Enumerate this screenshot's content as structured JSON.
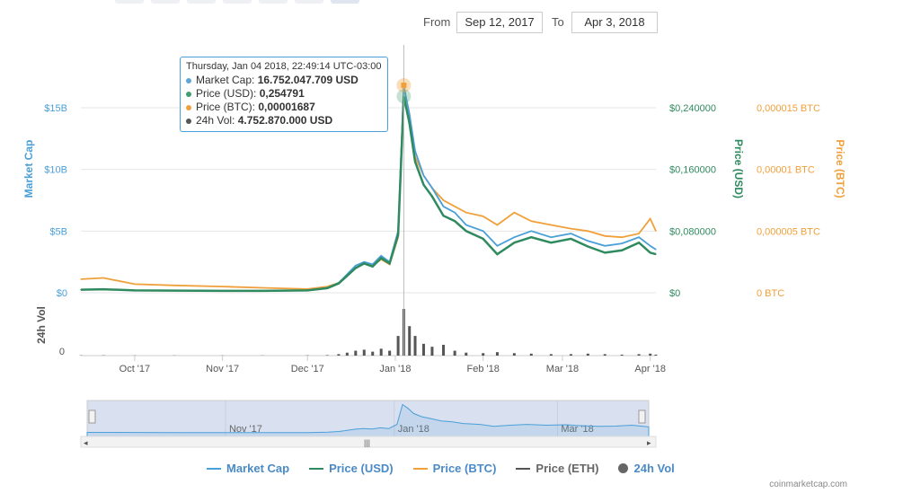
{
  "range": {
    "from_label": "From",
    "from_value": "Sep 12, 2017",
    "to_label": "To",
    "to_value": "Apr 3, 2018"
  },
  "tooltip": {
    "title": "Thursday, Jan 04 2018, 22:49:14 UTC-03:00",
    "rows": [
      {
        "label": "Market Cap:",
        "value": "16.752.047.709 USD",
        "color": "#5da7d8"
      },
      {
        "label": "Price (USD):",
        "value": "0,254791",
        "color": "#3f9f6f"
      },
      {
        "label": "Price (BTC):",
        "value": "0,00001687",
        "color": "#f0a03a"
      },
      {
        "label": "24h Vol:",
        "value": "4.752.870.000 USD",
        "color": "#555555"
      }
    ]
  },
  "legend": [
    {
      "label": "Market Cap",
      "color": "#4a9fd8",
      "kind": "line"
    },
    {
      "label": "Price (USD)",
      "color": "#2f8a5f",
      "kind": "line"
    },
    {
      "label": "Price (BTC)",
      "color": "#f0a03a",
      "kind": "line"
    },
    {
      "label": "Price (ETH)",
      "color": "#555555",
      "kind": "line"
    },
    {
      "label": "24h Vol",
      "color": "#666666",
      "kind": "dot"
    }
  ],
  "credit": "coinmarketcap.com",
  "chart_data": {
    "type": "line",
    "x": [
      "2017-09-12",
      "2017-09-20",
      "2017-10-01",
      "2017-10-15",
      "2017-11-01",
      "2017-11-15",
      "2017-12-01",
      "2017-12-08",
      "2017-12-12",
      "2017-12-15",
      "2017-12-18",
      "2017-12-21",
      "2017-12-24",
      "2017-12-27",
      "2017-12-30",
      "2018-01-02",
      "2018-01-04",
      "2018-01-06",
      "2018-01-08",
      "2018-01-11",
      "2018-01-14",
      "2018-01-18",
      "2018-01-22",
      "2018-01-26",
      "2018-02-01",
      "2018-02-06",
      "2018-02-12",
      "2018-02-18",
      "2018-02-25",
      "2018-03-04",
      "2018-03-10",
      "2018-03-16",
      "2018-03-22",
      "2018-03-28",
      "2018-04-01",
      "2018-04-03"
    ],
    "series": [
      {
        "name": "Market Cap",
        "axis": "Market Cap",
        "values": [
          0.25,
          0.28,
          0.2,
          0.18,
          0.15,
          0.15,
          0.18,
          0.4,
          0.8,
          1.5,
          2.2,
          2.5,
          2.3,
          3.0,
          2.5,
          5.0,
          16.75,
          14.5,
          11.5,
          9.5,
          8.5,
          7.0,
          6.5,
          5.5,
          5.0,
          3.8,
          4.5,
          5.0,
          4.5,
          4.8,
          4.2,
          3.8,
          4.0,
          4.5,
          3.8,
          3.5
        ]
      },
      {
        "name": "Price (USD)",
        "axis": "Price (USD)",
        "values": [
          0.004,
          0.0045,
          0.003,
          0.0028,
          0.0025,
          0.0025,
          0.003,
          0.006,
          0.012,
          0.022,
          0.032,
          0.038,
          0.034,
          0.045,
          0.038,
          0.075,
          0.254791,
          0.22,
          0.17,
          0.14,
          0.125,
          0.1,
          0.093,
          0.08,
          0.07,
          0.05,
          0.065,
          0.072,
          0.065,
          0.07,
          0.06,
          0.052,
          0.055,
          0.065,
          0.052,
          0.05
        ]
      },
      {
        "name": "Price (BTC)",
        "axis": "Price (BTC)",
        "values": [
          1.1e-06,
          1.2e-06,
          7e-07,
          6e-07,
          5e-07,
          4e-07,
          3e-07,
          5e-07,
          8e-07,
          1.4e-06,
          2e-06,
          2.4e-06,
          2.2e-06,
          2.7e-06,
          2.3e-06,
          4.5e-06,
          1.687e-05,
          1.4e-05,
          1.1e-05,
          9.5e-06,
          8.5e-06,
          7.5e-06,
          7e-06,
          6.5e-06,
          6.2e-06,
          5.5e-06,
          6.5e-06,
          5.8e-06,
          5.5e-06,
          5.2e-06,
          5e-06,
          4.6e-06,
          4.5e-06,
          4.8e-06,
          6e-06,
          5e-06
        ]
      },
      {
        "name": "24h Vol",
        "axis": "24h Vol",
        "values": [
          0.03,
          0.03,
          0.02,
          0.02,
          0.02,
          0.02,
          0.03,
          0.05,
          0.15,
          0.3,
          0.5,
          0.6,
          0.4,
          0.7,
          0.5,
          2.0,
          4.75,
          3.0,
          2.0,
          1.2,
          0.9,
          1.1,
          0.5,
          0.3,
          0.25,
          0.35,
          0.25,
          0.2,
          0.15,
          0.15,
          0.2,
          0.15,
          0.1,
          0.15,
          0.2,
          0.1
        ]
      }
    ],
    "axes": {
      "market_cap": {
        "label": "Market Cap",
        "ticks": [
          "$0",
          "$5B",
          "$10B",
          "$15B"
        ],
        "ylim": [
          0,
          15
        ]
      },
      "price_usd": {
        "label": "Price (USD)",
        "ticks": [
          "$0",
          "$0,080000",
          "$0,160000",
          "$0,240000"
        ],
        "ylim": [
          0,
          0.24
        ]
      },
      "price_btc": {
        "label": "Price (BTC)",
        "ticks": [
          "0 BTC",
          "0,000005 BTC",
          "0,00001 BTC",
          "0,000015 BTC"
        ],
        "ylim": [
          0,
          1.5e-05
        ]
      },
      "volume": {
        "label": "24h Vol",
        "ticks": [
          "0"
        ]
      },
      "x_ticks": [
        "Oct '17",
        "Nov '17",
        "Dec '17",
        "Jan '18",
        "Feb '18",
        "Mar '18",
        "Apr '18"
      ],
      "navigator_ticks": [
        "Nov '17",
        "Jan '18",
        "Mar '18"
      ]
    },
    "grid": true,
    "legend_position": "bottom"
  }
}
